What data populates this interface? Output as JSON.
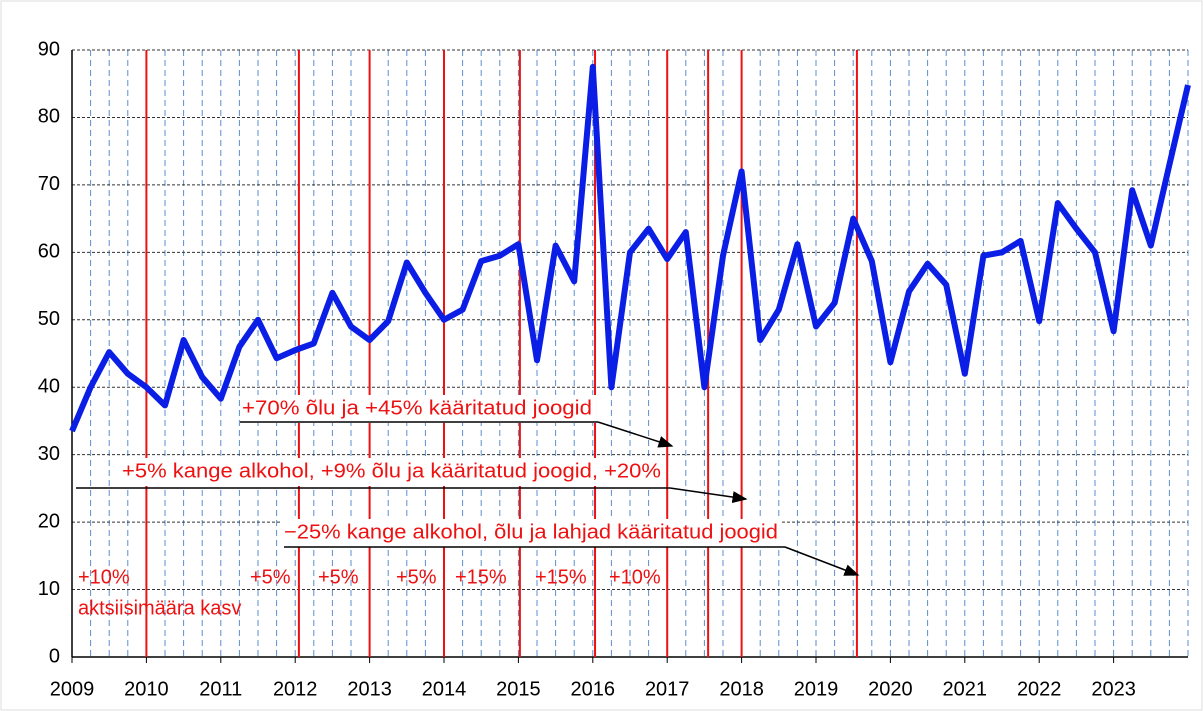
{
  "chart_data": {
    "type": "line",
    "x": [
      2009,
      2009.25,
      2009.5,
      2009.75,
      2010,
      2010.25,
      2010.5,
      2010.75,
      2011,
      2011.25,
      2011.5,
      2011.75,
      2012,
      2012.25,
      2012.5,
      2012.75,
      2013,
      2013.25,
      2013.5,
      2013.75,
      2014,
      2014.25,
      2014.5,
      2014.75,
      2015,
      2015.25,
      2015.5,
      2015.75,
      2016,
      2016.25,
      2016.5,
      2016.75,
      2017,
      2017.25,
      2017.5,
      2017.75,
      2018,
      2018.25,
      2018.5,
      2018.75,
      2019,
      2019.25,
      2019.5,
      2019.75,
      2020,
      2020.25,
      2020.5,
      2020.75,
      2021,
      2021.25,
      2021.5,
      2021.75,
      2022,
      2022.25,
      2022.5,
      2022.75,
      2023,
      2023.25,
      2023.5,
      2023.75,
      2024
    ],
    "series": [
      {
        "color": "#0a1ee6",
        "values": [
          33.5,
          40,
          45.2,
          42,
          40,
          37.3,
          47,
          41.5,
          38.3,
          46,
          50,
          44.3,
          45.5,
          46.5,
          54,
          49,
          47,
          49.8,
          58.5,
          54,
          50,
          51.5,
          58.7,
          59.5,
          61.2,
          44,
          61,
          55.7,
          87.5,
          40,
          60,
          63.5,
          59,
          63,
          40,
          59.5,
          72,
          47,
          51.5,
          61.2,
          49,
          52.5,
          65,
          58.7,
          43.7,
          54.2,
          58.3,
          55.2,
          42,
          59.5,
          60,
          61.7,
          49.8,
          67.3,
          63.5,
          60,
          48.3,
          69.2,
          61,
          73,
          84.8
        ]
      }
    ],
    "xlim": [
      2009,
      2024
    ],
    "xticks": [
      2009,
      2010,
      2011,
      2012,
      2013,
      2014,
      2015,
      2016,
      2017,
      2018,
      2019,
      2020,
      2021,
      2022,
      2023
    ],
    "ylim": [
      0,
      90
    ],
    "yticks": [
      0,
      10,
      20,
      30,
      40,
      50,
      60,
      70,
      80,
      90
    ],
    "grid": true,
    "event_lines": [
      2010,
      2012.05,
      2013,
      2014,
      2015.02,
      2016.03,
      2017,
      2017.55,
      2018,
      2019.55
    ],
    "event_color": "#ee1111",
    "event_labels": [
      "+10%",
      "aktsiisimäära kasv",
      "+5%",
      "+5%",
      "+5%",
      "+15%",
      "+15%",
      "+10%"
    ],
    "annotations": [
      "+70% õlu ja +45% kääritatud joogid",
      "+5% kange alkohol, +9% õlu ja kääritatud joogid, +20%",
      "−25% kange alkohol, õlu ja lahjad kääritatud joogid"
    ]
  }
}
